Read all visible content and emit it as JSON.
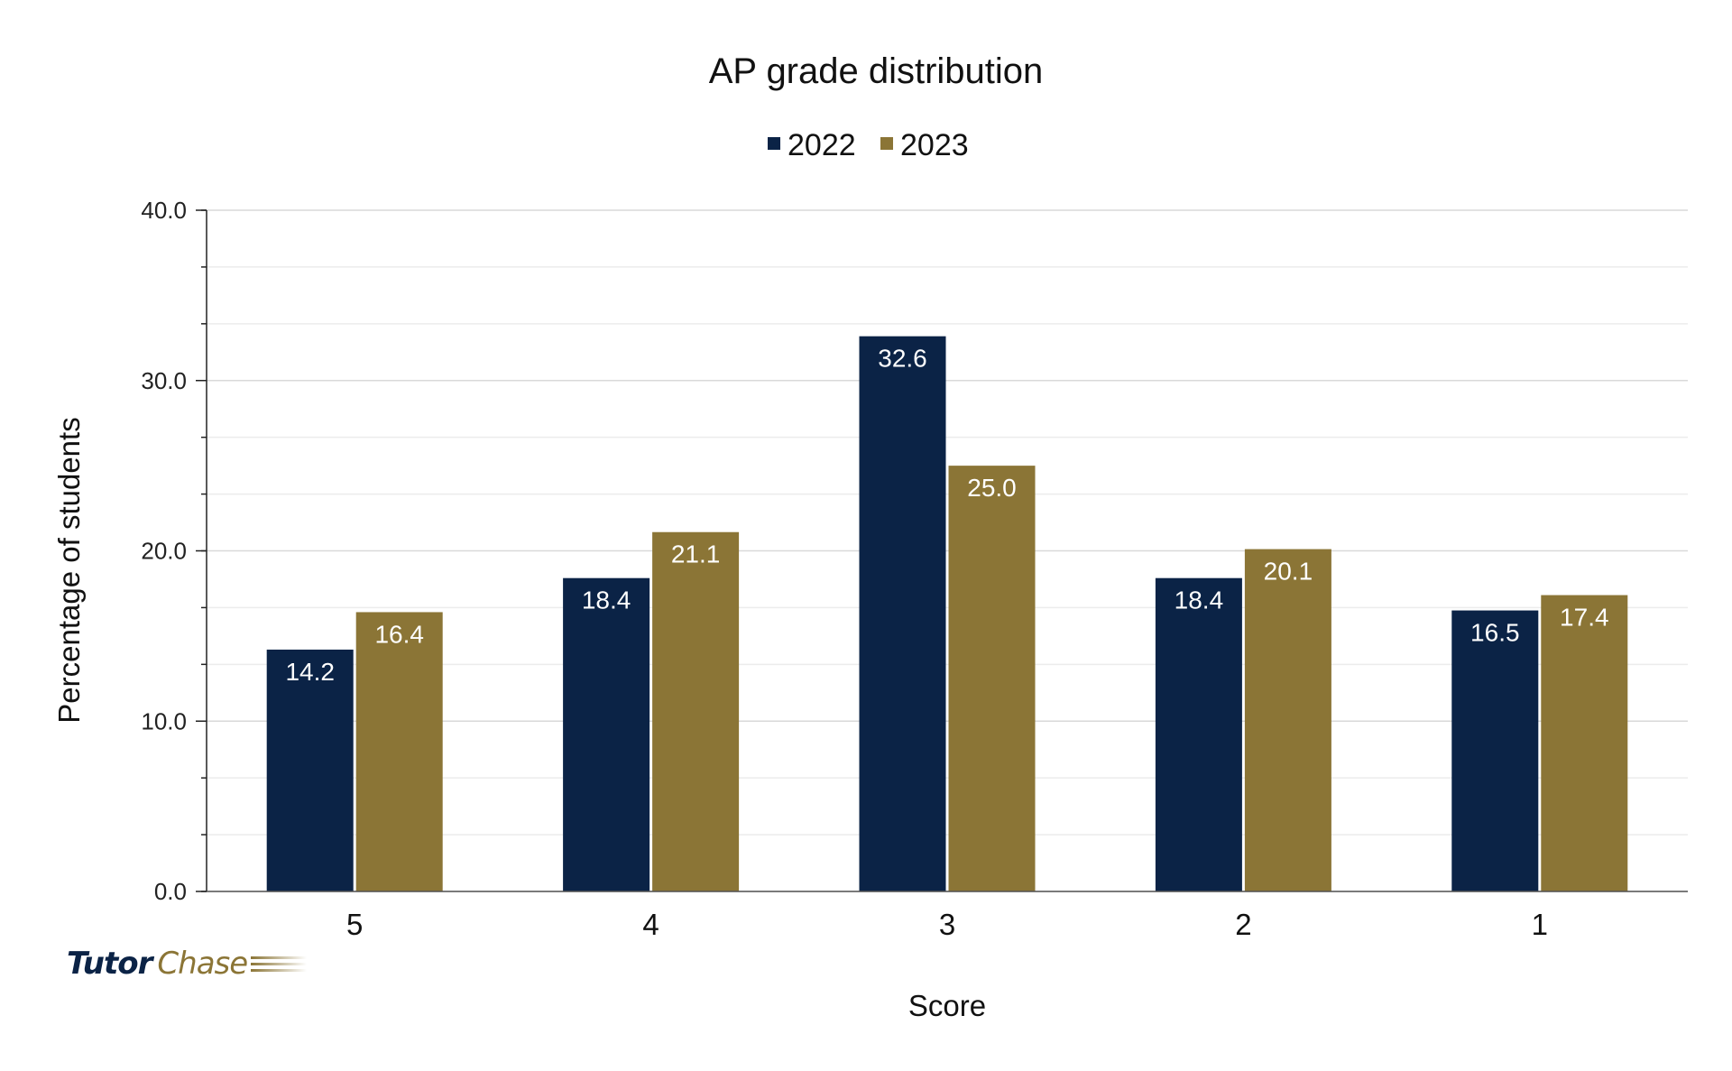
{
  "chart_data": {
    "type": "bar",
    "title": "AP grade distribution",
    "xlabel": "Score",
    "ylabel": "Percentage of students",
    "categories": [
      "5",
      "4",
      "3",
      "2",
      "1"
    ],
    "series": [
      {
        "name": "2022",
        "color": "#0b2346",
        "values": [
          14.2,
          18.4,
          32.6,
          18.4,
          16.5
        ]
      },
      {
        "name": "2023",
        "color": "#8b7536",
        "values": [
          16.4,
          21.1,
          25.0,
          20.1,
          17.4
        ]
      }
    ],
    "ylim": [
      0,
      40
    ],
    "yticks": [
      "0.0",
      "10.0",
      "20.0",
      "30.0",
      "40.0"
    ],
    "grid": true,
    "legend": "top-center",
    "data_labels": true
  },
  "logo": {
    "part1": "Tutor",
    "part2": "Chase"
  }
}
